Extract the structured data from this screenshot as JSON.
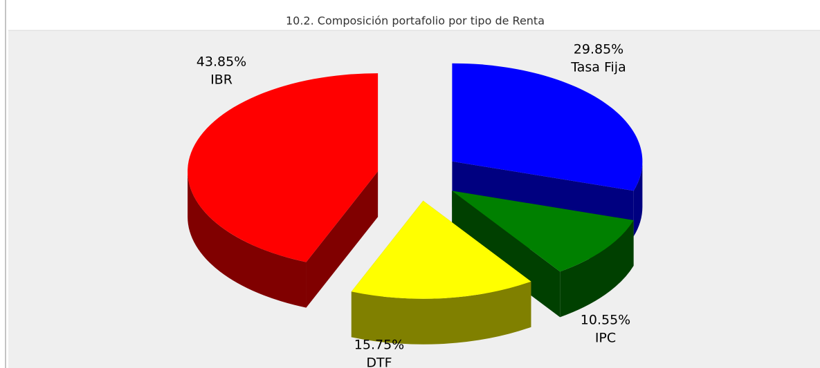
{
  "chart_data": {
    "type": "pie3d",
    "title": "10.2. Composición portafolio por tipo de Renta",
    "categories": [
      "Tasa Fija",
      "IPC",
      "DTF",
      "IBR"
    ],
    "values": [
      29.85,
      10.55,
      15.75,
      43.85
    ],
    "value_labels": [
      "29.85%",
      "10.55%",
      "15.75%",
      "43.85%"
    ],
    "colors": [
      "#0000ff",
      "#008000",
      "#ffff00",
      "#ff0000"
    ],
    "side_colors": [
      "#000080",
      "#004000",
      "#808000",
      "#800000"
    ]
  }
}
